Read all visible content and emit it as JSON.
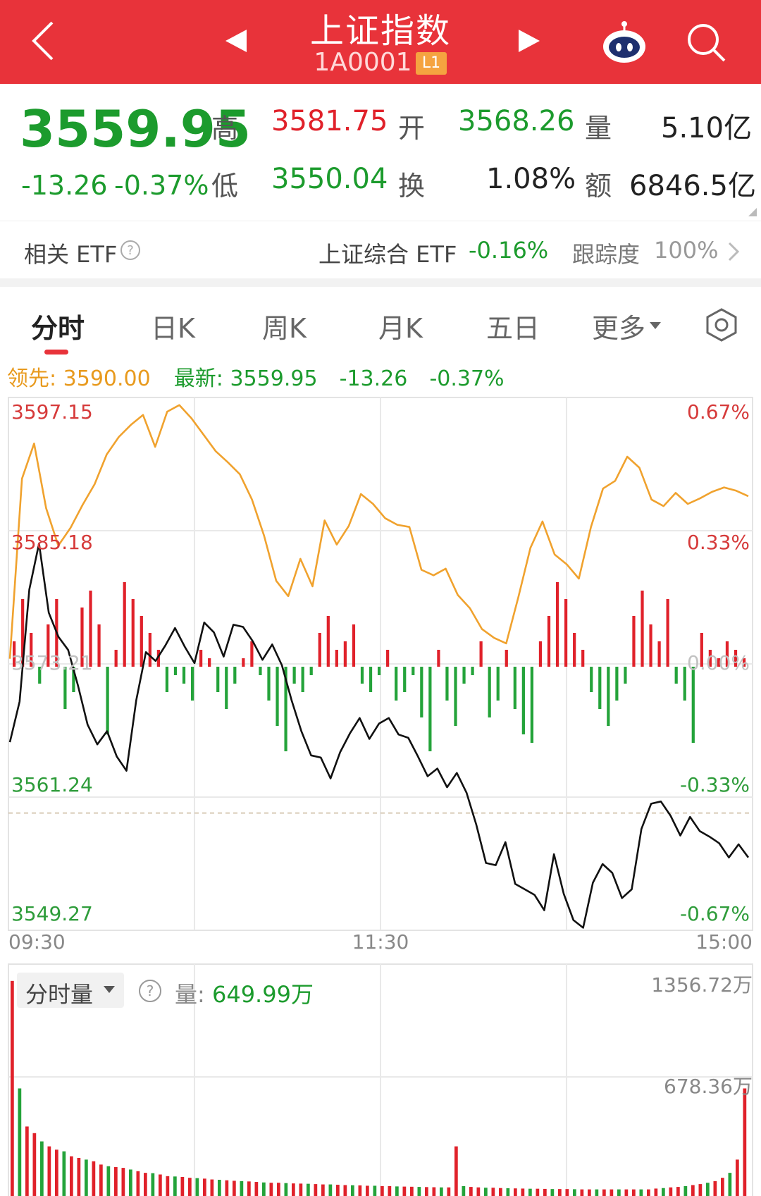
{
  "header": {
    "title": "上证指数",
    "code": "1A0001",
    "level_badge": "L1",
    "icons": [
      "back-icon",
      "prev-icon",
      "next-icon",
      "robot-icon",
      "search-icon"
    ],
    "bg_color": "#e8333a"
  },
  "quote": {
    "price": "3559.95",
    "change": "-13.26",
    "change_pct": "-0.37%",
    "high_label": "高",
    "high": "3581.75",
    "low_label": "低",
    "low": "3550.04",
    "open_label": "开",
    "open": "3568.26",
    "turnover_label": "换",
    "turnover": "1.08%",
    "volume_label": "量",
    "volume": "5.10亿",
    "amount_label": "额",
    "amount": "6846.5亿"
  },
  "etf": {
    "label": "相关 ETF",
    "name": "上证综合 ETF",
    "change": "-0.16%",
    "tracking_label": "跟踪度",
    "tracking": "100%"
  },
  "tabs": [
    "分时",
    "日K",
    "周K",
    "月K",
    "五日",
    "更多"
  ],
  "active_tab": "分时",
  "info": {
    "leading_label": "领先:",
    "leading": "3590.00",
    "latest_label": "最新:",
    "latest": "3559.95",
    "latest_change": "-13.26",
    "latest_pct": "-0.37%"
  },
  "chart_data": [
    {
      "type": "line",
      "title": "",
      "x_ticks": [
        "09:30",
        "11:30",
        "15:00"
      ],
      "y_ticks_left": [
        "3597.15",
        "3585.18",
        "3573.21",
        "3561.24",
        "3549.27"
      ],
      "y_ticks_right": [
        "0.67%",
        "0.33%",
        "0.00%",
        "-0.33%",
        "-0.67%"
      ],
      "ylim": [
        3549.27,
        3597.15
      ],
      "prev_close": 3573.21,
      "series": [
        {
          "name": "最新",
          "color": "#111111",
          "values": [
            3566.4,
            3570.1,
            3580.3,
            3584.5,
            3578.2,
            3576.0,
            3574.8,
            3571.6,
            3568.0,
            3566.2,
            3567.4,
            3565.1,
            3563.8,
            3570.2,
            3574.6,
            3573.8,
            3575.2,
            3576.8,
            3575.1,
            3573.6,
            3577.3,
            3576.4,
            3574.2,
            3577.1,
            3576.9,
            3575.6,
            3573.9,
            3575.3,
            3573.4,
            3570.2,
            3567.4,
            3565.2,
            3565.0,
            3563.1,
            3565.5,
            3567.2,
            3568.6,
            3566.7,
            3568.1,
            3568.6,
            3567.1,
            3566.8,
            3565.1,
            3563.3,
            3564.0,
            3562.3,
            3563.6,
            3561.8,
            3558.9,
            3555.4,
            3555.2,
            3557.3,
            3553.5,
            3553.0,
            3552.5,
            3551.1,
            3556.2,
            3552.6,
            3550.2,
            3549.5,
            3553.6,
            3555.3,
            3554.5,
            3552.2,
            3553.0,
            3558.5,
            3560.8,
            3561.0,
            3559.7,
            3557.9,
            3559.6,
            3558.3,
            3557.8,
            3557.2,
            3555.9,
            3557.1,
            3555.9
          ]
        },
        {
          "name": "领先",
          "color": "#f0a22e",
          "values": [
            3574.0,
            3590.4,
            3593.6,
            3587.7,
            3584.3,
            3585.9,
            3588.0,
            3589.9,
            3592.6,
            3594.2,
            3595.3,
            3596.2,
            3593.3,
            3596.5,
            3597.1,
            3595.9,
            3594.4,
            3592.9,
            3591.9,
            3590.8,
            3588.5,
            3585.2,
            3581.1,
            3579.7,
            3583.1,
            3580.6,
            3586.6,
            3584.4,
            3586.1,
            3589.0,
            3588.1,
            3586.8,
            3586.2,
            3586.0,
            3582.1,
            3581.6,
            3582.2,
            3579.8,
            3578.6,
            3576.7,
            3575.9,
            3575.4,
            3579.6,
            3584.1,
            3586.5,
            3583.5,
            3582.6,
            3581.3,
            3586.0,
            3589.5,
            3590.2,
            3592.4,
            3591.4,
            3588.5,
            3587.9,
            3589.1,
            3588.1,
            3588.6,
            3589.2,
            3589.6,
            3589.3,
            3588.8
          ]
        }
      ],
      "volume_bars": [
        3,
        8,
        4,
        -2,
        5,
        8,
        -5,
        -3,
        7,
        9,
        5,
        -8,
        2,
        10,
        8,
        6,
        4,
        2,
        -3,
        -1,
        -2,
        -4,
        2,
        1,
        -3,
        -5,
        -2,
        1,
        3,
        -1,
        -4,
        -7,
        -10,
        -2,
        -3,
        -1,
        4,
        6,
        2,
        3,
        5,
        -2,
        -3,
        -1,
        2,
        -4,
        -3,
        -1,
        -6,
        -10,
        2,
        -4,
        -7,
        -2,
        -1,
        3,
        -6,
        -4,
        2,
        -5,
        -8,
        -9,
        3,
        6,
        10,
        8,
        4,
        2,
        -3,
        -5,
        -7,
        -4,
        -2,
        6,
        9,
        5,
        3,
        8,
        -2,
        -4,
        -9,
        4,
        2,
        1,
        3,
        2,
        1
      ]
    },
    {
      "type": "bar",
      "title": "分时量",
      "volume_label": "量:",
      "volume": "649.99万",
      "y_ticks": [
        "1356.72万",
        "678.36万"
      ],
      "ylim": [
        0,
        1356.72
      ],
      "values": [
        1300,
        650,
        420,
        380,
        330,
        300,
        280,
        270,
        240,
        230,
        220,
        210,
        190,
        180,
        175,
        170,
        160,
        150,
        140,
        138,
        130,
        120,
        118,
        115,
        110,
        108,
        105,
        100,
        98,
        95,
        92,
        90,
        88,
        85,
        82,
        80,
        80,
        78,
        76,
        75,
        74,
        72,
        70,
        70,
        68,
        66,
        65,
        64,
        62,
        62,
        60,
        60,
        58,
        57,
        56,
        55,
        54,
        53,
        52,
        52,
        300,
        60,
        55,
        52,
        50,
        50,
        48,
        47,
        46,
        45,
        44,
        44,
        43,
        42,
        42,
        42,
        41,
        40,
        40,
        40,
        40,
        40,
        40,
        40,
        40,
        40,
        40,
        45,
        48,
        52,
        55,
        60,
        66,
        72,
        80,
        90,
        110,
        140,
        220,
        650
      ]
    }
  ]
}
